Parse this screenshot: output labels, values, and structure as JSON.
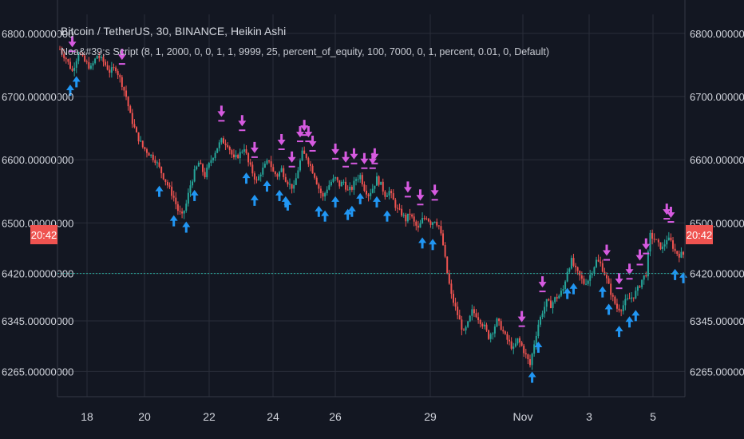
{
  "legend": {
    "title": "Bitcoin / TetherUS, 30, BINANCE, Heikin Ashi",
    "strategy": "Noa&#39;s Script (8, 1, 2000, 0, 0, 1, 1, 9999, 25, percent_of_equity, 100, 7000, 0, 1, percent, 0.01, 0, Default)"
  },
  "chart_data": {
    "type": "candlestick",
    "title": "Bitcoin / TetherUS, 30, BINANCE, Heikin Ashi",
    "y_ticks": [
      6800,
      6700,
      6600,
      6500,
      6420,
      6345,
      6265
    ],
    "y_tick_labels": [
      "6800.00000000",
      "6700.00000000",
      "6600.00000000",
      "6500.00000000",
      "6420.00000000",
      "6345.00000000",
      "6265.00000000"
    ],
    "ylim": [
      6225,
      6830
    ],
    "x_ticks": [
      "18",
      "20",
      "22",
      "24",
      "26",
      "29",
      "Nov",
      "3",
      "5"
    ],
    "current_price": 6420,
    "countdown_label": "20:42",
    "grid": true,
    "colors": {
      "background": "#131722",
      "up": "#26a69a",
      "down": "#ef5350",
      "buy": "#2196f3",
      "sell": "#d65ae0",
      "price_line": "#26a69a",
      "label_bg": "#ef5350",
      "grid": "#2a2e39",
      "axis_text": "#d1d4dc"
    },
    "price_path": [
      [
        0,
        6775
      ],
      [
        3,
        6760
      ],
      [
        6,
        6740
      ],
      [
        9,
        6770
      ],
      [
        12,
        6755
      ],
      [
        15,
        6745
      ],
      [
        18,
        6765
      ],
      [
        21,
        6755
      ],
      [
        24,
        6740
      ],
      [
        27,
        6745
      ],
      [
        30,
        6720
      ],
      [
        32,
        6700
      ],
      [
        34,
        6670
      ],
      [
        37,
        6640
      ],
      [
        40,
        6620
      ],
      [
        43,
        6610
      ],
      [
        46,
        6600
      ],
      [
        49,
        6580
      ],
      [
        52,
        6560
      ],
      [
        55,
        6540
      ],
      [
        57,
        6520
      ],
      [
        59,
        6510
      ],
      [
        61,
        6530
      ],
      [
        63,
        6560
      ],
      [
        65,
        6580
      ],
      [
        67,
        6595
      ],
      [
        70,
        6575
      ],
      [
        73,
        6600
      ],
      [
        76,
        6620
      ],
      [
        78,
        6630
      ],
      [
        81,
        6625
      ],
      [
        84,
        6600
      ],
      [
        87,
        6610
      ],
      [
        89,
        6620
      ],
      [
        91,
        6595
      ],
      [
        93,
        6580
      ],
      [
        95,
        6565
      ],
      [
        97,
        6580
      ],
      [
        99,
        6590
      ],
      [
        101,
        6600
      ],
      [
        103,
        6580
      ],
      [
        105,
        6575
      ],
      [
        107,
        6585
      ],
      [
        109,
        6570
      ],
      [
        111,
        6560
      ],
      [
        113,
        6555
      ],
      [
        115,
        6585
      ],
      [
        117,
        6610
      ],
      [
        119,
        6605
      ],
      [
        121,
        6590
      ],
      [
        123,
        6575
      ],
      [
        125,
        6555
      ],
      [
        127,
        6540
      ],
      [
        129,
        6555
      ],
      [
        131,
        6565
      ],
      [
        133,
        6570
      ],
      [
        135,
        6560
      ],
      [
        137,
        6565
      ],
      [
        139,
        6550
      ],
      [
        141,
        6555
      ],
      [
        143,
        6570
      ],
      [
        145,
        6575
      ],
      [
        147,
        6555
      ],
      [
        149,
        6545
      ],
      [
        151,
        6555
      ],
      [
        153,
        6570
      ],
      [
        155,
        6560
      ],
      [
        157,
        6545
      ],
      [
        159,
        6550
      ],
      [
        161,
        6535
      ],
      [
        163,
        6520
      ],
      [
        165,
        6515
      ],
      [
        167,
        6505
      ],
      [
        169,
        6515
      ],
      [
        171,
        6500
      ],
      [
        173,
        6490
      ],
      [
        175,
        6505
      ],
      [
        177,
        6510
      ],
      [
        179,
        6500
      ],
      [
        181,
        6505
      ],
      [
        183,
        6495
      ],
      [
        185,
        6465
      ],
      [
        187,
        6420
      ],
      [
        189,
        6385
      ],
      [
        191,
        6365
      ],
      [
        193,
        6345
      ],
      [
        195,
        6325
      ],
      [
        197,
        6340
      ],
      [
        199,
        6360
      ],
      [
        201,
        6355
      ],
      [
        203,
        6345
      ],
      [
        205,
        6335
      ],
      [
        207,
        6320
      ],
      [
        209,
        6330
      ],
      [
        211,
        6345
      ],
      [
        213,
        6335
      ],
      [
        215,
        6320
      ],
      [
        217,
        6310
      ],
      [
        219,
        6300
      ],
      [
        221,
        6315
      ],
      [
        223,
        6305
      ],
      [
        225,
        6290
      ],
      [
        227,
        6275
      ],
      [
        229,
        6310
      ],
      [
        231,
        6340
      ],
      [
        233,
        6360
      ],
      [
        235,
        6375
      ],
      [
        237,
        6370
      ],
      [
        239,
        6380
      ],
      [
        241,
        6385
      ],
      [
        243,
        6395
      ],
      [
        245,
        6425
      ],
      [
        247,
        6440
      ],
      [
        249,
        6425
      ],
      [
        251,
        6415
      ],
      [
        253,
        6405
      ],
      [
        255,
        6410
      ],
      [
        257,
        6425
      ],
      [
        259,
        6440
      ],
      [
        261,
        6435
      ],
      [
        263,
        6420
      ],
      [
        265,
        6400
      ],
      [
        267,
        6380
      ],
      [
        269,
        6365
      ],
      [
        271,
        6365
      ],
      [
        273,
        6375
      ],
      [
        275,
        6380
      ],
      [
        277,
        6385
      ],
      [
        279,
        6395
      ],
      [
        281,
        6410
      ],
      [
        283,
        6420
      ],
      [
        285,
        6480
      ],
      [
        287,
        6475
      ],
      [
        289,
        6465
      ],
      [
        291,
        6460
      ],
      [
        293,
        6475
      ],
      [
        295,
        6470
      ],
      [
        297,
        6455
      ],
      [
        299,
        6450
      ]
    ],
    "sell_markers": [
      6,
      30,
      78,
      88,
      94,
      107,
      112,
      116,
      118,
      120,
      122,
      133,
      138,
      142,
      147,
      151,
      152,
      168,
      174,
      181,
      223,
      233,
      264,
      270,
      275,
      280,
      283,
      293,
      295
    ],
    "buy_markers": [
      5,
      8,
      48,
      55,
      61,
      65,
      90,
      94,
      100,
      106,
      109,
      110,
      125,
      128,
      133,
      139,
      141,
      145,
      153,
      158,
      175,
      180,
      228,
      231,
      245,
      248,
      262,
      265,
      270,
      275,
      278,
      297,
      301
    ]
  }
}
